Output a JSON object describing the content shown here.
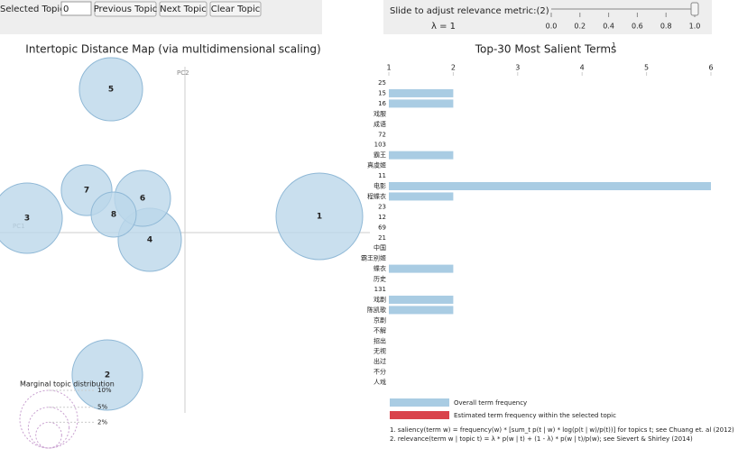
{
  "controls": {
    "selected_topic_label": "Selected Topic:",
    "selected_topic": "0",
    "buttons": [
      "Previous Topic",
      "Next Topic",
      "Clear Topic"
    ],
    "slider_label": "Slide to adjust relevance metric:(2)",
    "lambda_label": "λ = 1",
    "slider_value": 1,
    "slider_range": [
      0,
      1
    ],
    "slider_ticks": [
      {
        "value": 0,
        "label": "0.0"
      },
      {
        "value": 0.2,
        "label": "0.2"
      },
      {
        "value": 0.4,
        "label": "0.4"
      },
      {
        "value": 0.6,
        "label": "0.6"
      },
      {
        "value": 0.8,
        "label": "0.8"
      },
      {
        "value": 1,
        "label": "1.0"
      }
    ]
  },
  "chart_data": [
    {
      "type": "scatter",
      "title": "Intertopic Distance Map (via multidimensional scaling)",
      "xlabel": "PC1",
      "ylabel": "PC2",
      "labels": [
        "1",
        "2",
        "3",
        "4",
        "5",
        "6",
        "7",
        "8"
      ],
      "x": [
        0.298,
        -0.172,
        -0.35,
        -0.078,
        -0.164,
        -0.094,
        -0.218,
        -0.158
      ],
      "y": [
        0.036,
        -0.316,
        0.032,
        -0.016,
        0.318,
        0.076,
        0.094,
        0.04
      ],
      "sizes": [
        22.5,
        14.9,
        14.9,
        12,
        12,
        9.4,
        7.7,
        6.1
      ],
      "xlim": [
        -0.41,
        0.41
      ],
      "ylim": [
        -0.4,
        0.4
      ],
      "color": "#bcd7ea",
      "size_legend": {
        "title": "Marginal topic distribution",
        "values": [
          2,
          5,
          10
        ],
        "value_labels": [
          "2%",
          "5%",
          "10%"
        ]
      }
    },
    {
      "type": "bar",
      "orientation": "horizontal",
      "title": "Top-30 Most Salient Terms",
      "title_note": "1",
      "categories": [
        "25",
        "15",
        "16",
        "戏服",
        "成语",
        "72",
        "103",
        "霸王",
        "真虞姬",
        "11",
        "电影",
        "程蝶衣",
        "23",
        "12",
        "69",
        "21",
        "中国",
        "霸王别姬",
        "蝶衣",
        "历史",
        "131",
        "戏剧",
        "陈凯歌",
        "京剧",
        "不解",
        "招出",
        "无视",
        "出过",
        "不分",
        "人戏"
      ],
      "series": [
        {
          "name": "Overall term frequency",
          "color": "#a9cce3",
          "values": [
            1,
            2,
            2,
            1,
            1,
            1,
            1,
            2,
            1,
            1,
            6,
            2,
            1,
            1,
            1,
            1,
            1,
            1,
            2,
            1,
            1,
            2,
            2,
            1,
            1,
            1,
            1,
            1,
            1,
            1
          ]
        },
        {
          "name": "Estimated term frequency within the selected topic",
          "color": "#d9434b"
        }
      ],
      "xlim": [
        1,
        6
      ],
      "xticks": [
        1,
        2,
        3,
        4,
        5,
        6
      ],
      "footnotes": [
        "1. saliency(term w) = frequency(w) * [sum_t p(t | w) * log(p(t | w)/p(t))] for topics t; see Chuang et. al (2012)",
        "2. relevance(term w | topic t) = λ * p(w | t) + (1 - λ) * p(w | t)/p(w); see Sievert & Shirley (2014)"
      ]
    }
  ]
}
